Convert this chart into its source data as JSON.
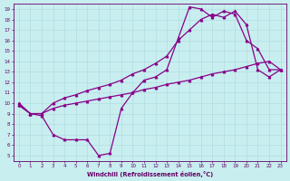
{
  "xlabel": "Windchill (Refroidissement éolien,°C)",
  "bg_color": "#c8eef0",
  "grid_color": "#b0dde0",
  "line_color": "#880088",
  "xlim": [
    -0.5,
    23.5
  ],
  "ylim": [
    4.5,
    19.5
  ],
  "xticks": [
    0,
    1,
    2,
    3,
    4,
    5,
    6,
    7,
    8,
    9,
    10,
    11,
    12,
    13,
    14,
    15,
    16,
    17,
    18,
    19,
    20,
    21,
    22,
    23
  ],
  "yticks": [
    5,
    6,
    7,
    8,
    9,
    10,
    11,
    12,
    13,
    14,
    15,
    16,
    17,
    18,
    19
  ],
  "line1_x": [
    0,
    1,
    2,
    3,
    4,
    5,
    6,
    7,
    8,
    9,
    10,
    11,
    12,
    13,
    14,
    15,
    16,
    17,
    18,
    19,
    20,
    21,
    22,
    23
  ],
  "line1_y": [
    10.0,
    9.0,
    8.8,
    7.0,
    6.5,
    6.5,
    6.5,
    5.0,
    5.2,
    9.5,
    11.0,
    12.2,
    12.5,
    13.2,
    16.2,
    19.2,
    19.0,
    18.2,
    18.8,
    18.5,
    16.0,
    15.2,
    13.2,
    13.2
  ],
  "line2_x": [
    0,
    1,
    2,
    3,
    4,
    5,
    6,
    7,
    8,
    9,
    10,
    11,
    12,
    13,
    14,
    15,
    16,
    17,
    18,
    19,
    20,
    21,
    22,
    23
  ],
  "line2_y": [
    9.8,
    9.0,
    9.0,
    9.5,
    9.8,
    10.0,
    10.2,
    10.4,
    10.6,
    10.8,
    11.0,
    11.3,
    11.5,
    11.8,
    12.0,
    12.2,
    12.5,
    12.8,
    13.0,
    13.2,
    13.5,
    13.8,
    14.0,
    13.2
  ],
  "line3_x": [
    0,
    1,
    2,
    3,
    4,
    5,
    6,
    7,
    8,
    9,
    10,
    11,
    12,
    13,
    14,
    15,
    16,
    17,
    18,
    19,
    20,
    21,
    22,
    23
  ],
  "line3_y": [
    9.8,
    9.0,
    9.0,
    10.0,
    10.5,
    10.8,
    11.2,
    11.5,
    11.8,
    12.2,
    12.8,
    13.2,
    13.8,
    14.5,
    16.0,
    17.0,
    18.0,
    18.5,
    18.2,
    18.8,
    17.5,
    13.2,
    12.5,
    13.2
  ]
}
